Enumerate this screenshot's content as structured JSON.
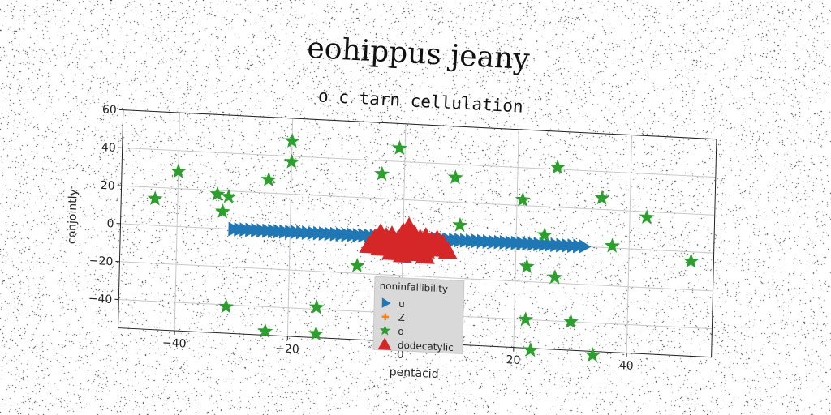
{
  "chart_data": {
    "type": "scatter",
    "title": "eohippus jeany",
    "subtitle": "o c tarn cellulation",
    "xlabel": "pentacid",
    "ylabel": "conjointly",
    "xlim": [
      -50,
      55
    ],
    "ylim": [
      -55,
      60
    ],
    "xticks": [
      -40,
      -20,
      0,
      20,
      40
    ],
    "yticks": [
      -40,
      -20,
      0,
      20,
      40,
      60
    ],
    "grid": true,
    "legend": {
      "title": "noninfallibility",
      "placement": "lower-center"
    },
    "series": [
      {
        "name": "u",
        "marker": "triangle-right",
        "color": "#1f77b4",
        "x": [
          -30,
          -29,
          -28,
          -27,
          -26,
          -25,
          -24,
          -23,
          -22,
          -21,
          -20,
          -19,
          -18,
          -17,
          -16,
          -15,
          -14,
          -13,
          -12,
          -11,
          -10,
          -9,
          -8,
          -7,
          -6,
          -5,
          -4,
          -3,
          -2,
          -1,
          0,
          1,
          2,
          3,
          4,
          5,
          6,
          7,
          8,
          9,
          10,
          11,
          12,
          13,
          14,
          15,
          16,
          17,
          18,
          19,
          20,
          21,
          22,
          23,
          24,
          25,
          26,
          27,
          28,
          29,
          30,
          31,
          32
        ],
        "y": [
          0,
          0,
          0,
          0,
          0,
          0,
          0,
          0,
          0,
          0,
          0,
          0,
          0,
          0,
          0,
          0,
          0,
          0,
          0,
          0,
          0,
          0,
          0,
          0,
          0,
          0,
          0,
          0,
          0,
          0,
          0,
          0,
          0,
          0,
          0,
          0,
          0,
          0,
          0,
          0,
          0,
          0,
          0,
          0,
          0,
          0,
          0,
          0,
          0,
          0,
          0,
          0,
          0,
          0,
          0,
          0,
          0,
          0,
          0,
          0,
          0,
          0,
          0
        ]
      },
      {
        "name": "Z",
        "marker": "plus",
        "color": "#ff7f0e",
        "x": [
          -4,
          -2,
          0,
          1,
          2,
          3,
          4,
          5,
          6,
          7
        ],
        "y": [
          -1,
          1,
          0,
          2,
          -1,
          1,
          0,
          -2,
          1,
          -3
        ]
      },
      {
        "name": "o",
        "marker": "star",
        "color": "#2ca02c",
        "x": [
          -44,
          -40,
          -33,
          -32,
          -31,
          -31,
          -24,
          -24,
          -20,
          -20,
          -15,
          -15,
          -8,
          -4,
          -1,
          9,
          10,
          21,
          22,
          22,
          23,
          25,
          27,
          27,
          30,
          34,
          35,
          37,
          43,
          51
        ],
        "y": [
          14,
          29,
          18,
          9,
          17,
          -41,
          27,
          -53,
          48,
          37,
          -39,
          -53,
          -16,
          33,
          47,
          33,
          8,
          23,
          -12,
          -40,
          -56,
          5,
          41,
          -17,
          -40,
          -57,
          26,
          1,
          17,
          -5
        ]
      },
      {
        "name": "dodecatylic",
        "marker": "triangle-up",
        "color": "#d62728",
        "x": [
          -6,
          -5,
          -4,
          -3,
          -2,
          -1,
          0,
          1,
          2,
          3,
          4,
          5,
          6,
          7,
          8,
          -5,
          -3,
          -1,
          1,
          3,
          5,
          7,
          -4,
          -2,
          0,
          2,
          4,
          6,
          -2,
          0,
          2,
          4,
          1
        ],
        "y": [
          -5,
          -4,
          -6,
          -3,
          -5,
          -4,
          -6,
          -3,
          -5,
          -4,
          -6,
          -3,
          -5,
          -4,
          -6,
          -1,
          0,
          -2,
          1,
          0,
          -1,
          -2,
          2,
          1,
          3,
          2,
          1,
          0,
          -8,
          -9,
          -8,
          -9,
          6
        ]
      }
    ]
  }
}
